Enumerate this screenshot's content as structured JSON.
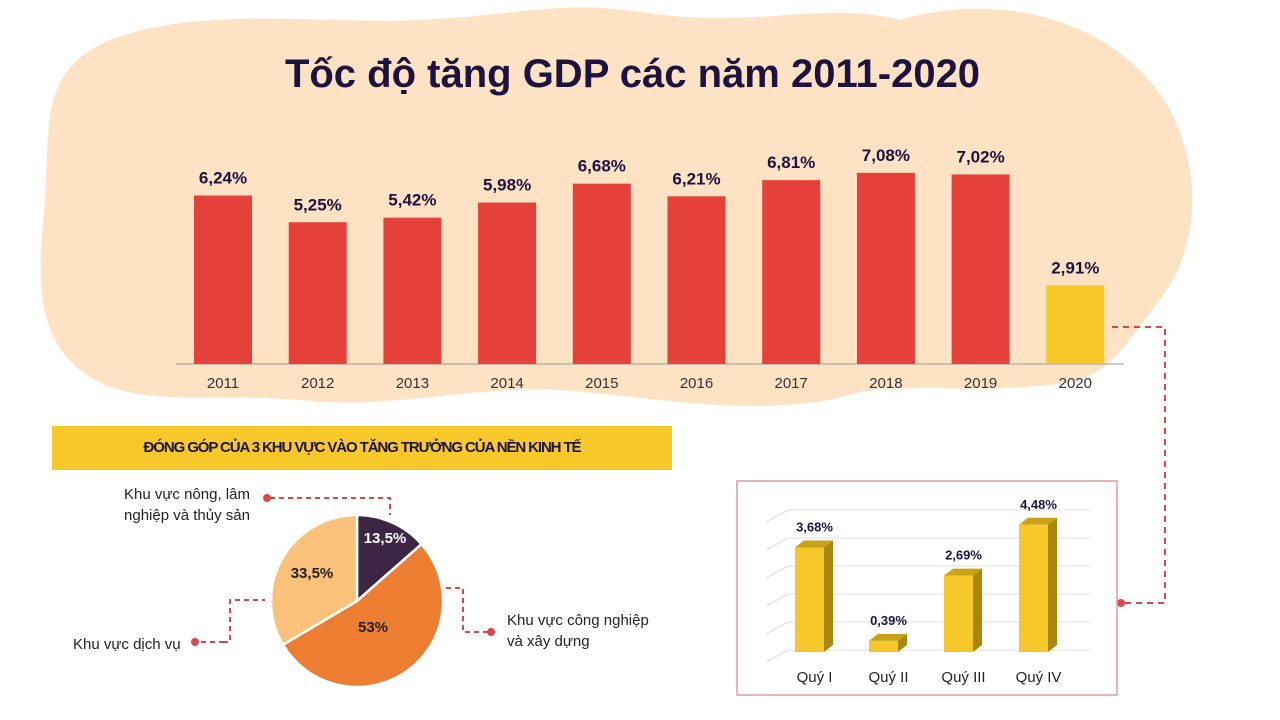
{
  "title": "Tốc độ tăng GDP các năm 2011-2020",
  "colors": {
    "background_blob": "#fde3c4",
    "bar": "#e5413a",
    "highlight_bar": "#f7c829",
    "connector": "#e0454a",
    "title": "#1c1340"
  },
  "chart_data": [
    {
      "type": "bar",
      "title": "Tốc độ tăng GDP các năm 2011-2020",
      "categories": [
        "2011",
        "2012",
        "2013",
        "2014",
        "2015",
        "2016",
        "2017",
        "2018",
        "2019",
        "2020"
      ],
      "values": [
        6.24,
        5.25,
        5.42,
        5.98,
        6.68,
        6.21,
        6.81,
        7.08,
        7.02,
        2.91
      ],
      "data_labels": [
        "6,24%",
        "5,25%",
        "5,42%",
        "5,98%",
        "6,68%",
        "6,21%",
        "6,81%",
        "7,08%",
        "7,02%",
        "2,91%"
      ],
      "highlighted": "2020",
      "grid": false
    },
    {
      "type": "pie",
      "title": "ĐÓNG GÓP CỦA 3 KHU VỰC VÀO TĂNG TRƯỞNG CỦA NỀN KINH TẾ",
      "slices": [
        {
          "label": "Khu vực nông, lâm nghiệp và thủy sản",
          "value": 13.5,
          "data_label": "13,5%",
          "color": "#3d2645"
        },
        {
          "label": "Khu vực công nghiệp và xây dựng",
          "value": 53,
          "data_label": "53%",
          "color": "#ed7d31"
        },
        {
          "label": "Khu vực dịch vụ",
          "value": 33.5,
          "data_label": "33,5%",
          "color": "#f9c17a"
        }
      ]
    },
    {
      "type": "bar",
      "style": "3d",
      "categories": [
        "Quý I",
        "Quý II",
        "Quý III",
        "Quý IV"
      ],
      "values": [
        3.68,
        0.39,
        2.69,
        4.48
      ],
      "data_labels": [
        "3,68%",
        "0,39%",
        "2,69%",
        "4,48%"
      ],
      "grid": true
    }
  ]
}
